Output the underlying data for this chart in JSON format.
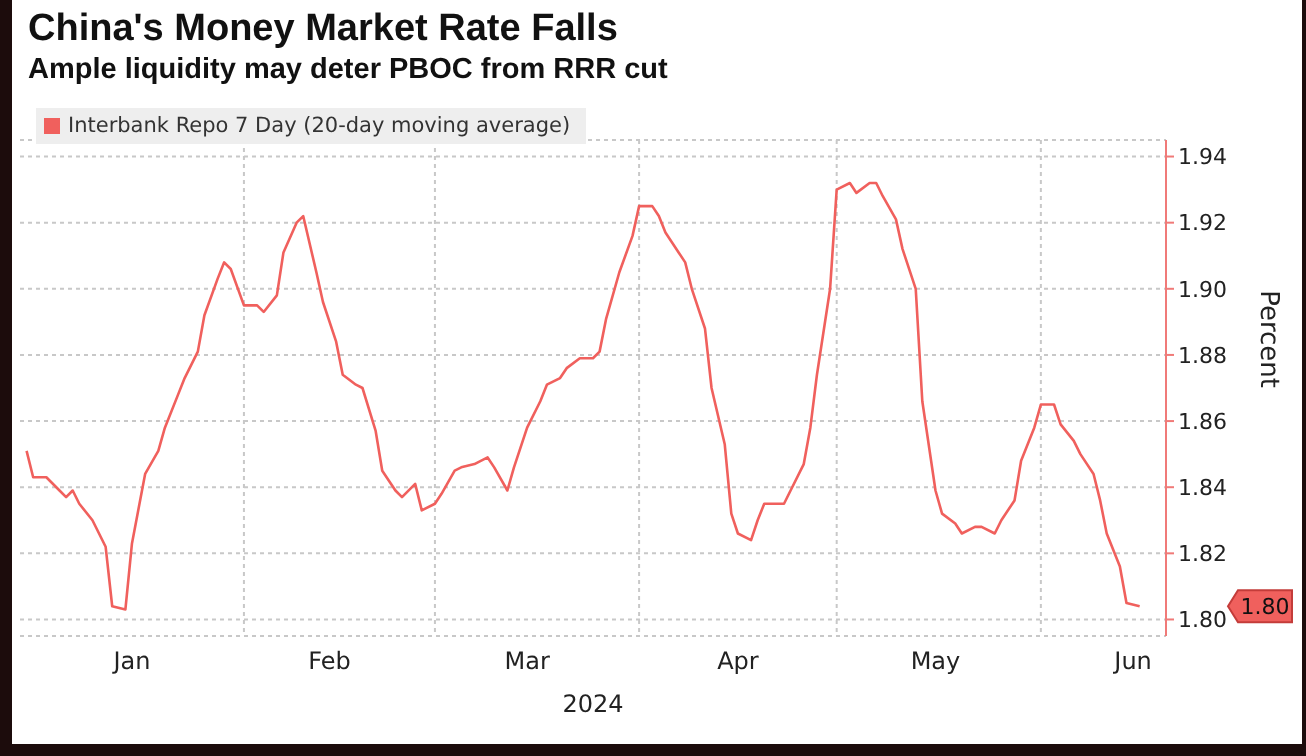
{
  "chart_data": {
    "type": "line",
    "title": "China's Money Market Rate Falls",
    "subtitle": "Ample liquidity may deter PBOC from RRR cut",
    "xlabel": "2024",
    "ylabel": "Percent",
    "x": [
      "2023-12-30",
      "2023-12-31",
      "2024-01-02",
      "2024-01-04",
      "2024-01-05",
      "2024-01-06",
      "2024-01-07",
      "2024-01-09",
      "2024-01-11",
      "2024-01-12",
      "2024-01-14",
      "2024-01-15",
      "2024-01-17",
      "2024-01-19",
      "2024-01-20",
      "2024-01-22",
      "2024-01-23",
      "2024-01-25",
      "2024-01-26",
      "2024-01-28",
      "2024-01-29",
      "2024-01-30",
      "2024-02-01",
      "2024-02-03",
      "2024-02-04",
      "2024-02-06",
      "2024-02-07",
      "2024-02-09",
      "2024-02-10",
      "2024-02-12",
      "2024-02-13",
      "2024-02-15",
      "2024-02-16",
      "2024-02-18",
      "2024-02-19",
      "2024-02-21",
      "2024-02-22",
      "2024-02-24",
      "2024-02-25",
      "2024-02-27",
      "2024-02-28",
      "2024-03-01",
      "2024-03-02",
      "2024-03-04",
      "2024-03-05",
      "2024-03-07",
      "2024-03-09",
      "2024-03-10",
      "2024-03-12",
      "2024-03-13",
      "2024-03-15",
      "2024-03-17",
      "2024-03-18",
      "2024-03-20",
      "2024-03-21",
      "2024-03-23",
      "2024-03-25",
      "2024-03-26",
      "2024-03-27",
      "2024-03-29",
      "2024-03-31",
      "2024-04-01",
      "2024-04-03",
      "2024-04-04",
      "2024-04-05",
      "2024-04-07",
      "2024-04-08",
      "2024-04-09",
      "2024-04-11",
      "2024-04-12",
      "2024-04-14",
      "2024-04-15",
      "2024-04-16",
      "2024-04-18",
      "2024-04-19",
      "2024-04-20",
      "2024-04-22",
      "2024-04-23",
      "2024-04-24",
      "2024-04-26",
      "2024-04-27",
      "2024-04-28",
      "2024-04-30",
      "2024-05-01",
      "2024-05-03",
      "2024-05-04",
      "2024-05-06",
      "2024-05-07",
      "2024-05-08",
      "2024-05-10",
      "2024-05-11",
      "2024-05-13",
      "2024-05-14",
      "2024-05-16",
      "2024-05-17",
      "2024-05-19",
      "2024-05-20",
      "2024-05-22",
      "2024-05-23",
      "2024-05-25",
      "2024-05-26",
      "2024-05-28",
      "2024-05-29",
      "2024-05-31",
      "2024-06-01",
      "2024-06-03",
      "2024-06-04",
      "2024-06-06",
      "2024-06-07",
      "2024-06-09",
      "2024-06-10",
      "2024-06-11",
      "2024-06-13",
      "2024-06-14",
      "2024-06-16"
    ],
    "series": [
      {
        "name": "Interbank Repo 7 Day (20-day moving average)",
        "color": "#f0605d",
        "values": [
          1.851,
          1.843,
          1.843,
          1.839,
          1.837,
          1.839,
          1.835,
          1.83,
          1.822,
          1.804,
          1.803,
          1.823,
          1.844,
          1.851,
          1.858,
          1.868,
          1.873,
          1.881,
          1.892,
          1.903,
          1.908,
          1.906,
          1.895,
          1.895,
          1.893,
          1.898,
          1.911,
          1.92,
          1.922,
          1.905,
          1.896,
          1.884,
          1.874,
          1.871,
          1.87,
          1.857,
          1.845,
          1.839,
          1.837,
          1.841,
          1.833,
          1.835,
          1.838,
          1.845,
          1.846,
          1.847,
          1.849,
          1.846,
          1.839,
          1.846,
          1.858,
          1.866,
          1.871,
          1.873,
          1.876,
          1.879,
          1.879,
          1.881,
          1.891,
          1.905,
          1.916,
          1.925,
          1.925,
          1.922,
          1.917,
          1.911,
          1.908,
          1.9,
          1.888,
          1.87,
          1.853,
          1.832,
          1.826,
          1.824,
          1.83,
          1.835,
          1.835,
          1.835,
          1.839,
          1.847,
          1.858,
          1.874,
          1.9,
          1.93,
          1.932,
          1.929,
          1.932,
          1.932,
          1.928,
          1.921,
          1.912,
          1.9,
          1.866,
          1.839,
          1.832,
          1.829,
          1.826,
          1.828,
          1.828,
          1.826,
          1.83,
          1.836,
          1.848,
          1.858,
          1.865,
          1.865,
          1.859,
          1.854,
          1.85,
          1.844,
          1.836,
          1.826,
          1.816,
          1.805,
          1.804
        ]
      }
    ],
    "xlim": [
      "2023-12-29",
      "2024-06-20"
    ],
    "xticks": [
      {
        "value": "2024-01-15",
        "label": "Jan"
      },
      {
        "value": "2024-02-01",
        "label": null
      },
      {
        "value": "2024-02-14",
        "label": "Feb"
      },
      {
        "value": "2024-03-01",
        "label": null
      },
      {
        "value": "2024-03-15",
        "label": "Mar"
      },
      {
        "value": "2024-04-01",
        "label": null
      },
      {
        "value": "2024-04-16",
        "label": "Apr"
      },
      {
        "value": "2024-05-01",
        "label": null
      },
      {
        "value": "2024-05-16",
        "label": "May"
      },
      {
        "value": "2024-06-01",
        "label": null
      },
      {
        "value": "2024-06-15",
        "label": "Jun"
      }
    ],
    "ylim": [
      1.795,
      1.945
    ],
    "yticks": [
      {
        "value": 1.8,
        "label": "1.80"
      },
      1.82,
      1.84,
      1.86,
      1.88,
      {
        "value": 1.9,
        "label": "1.90"
      },
      1.92,
      1.94
    ],
    "annotations": [
      "1.80"
    ],
    "grid": true,
    "legend": "top left",
    "marker": "none",
    "line_style": "solid"
  }
}
